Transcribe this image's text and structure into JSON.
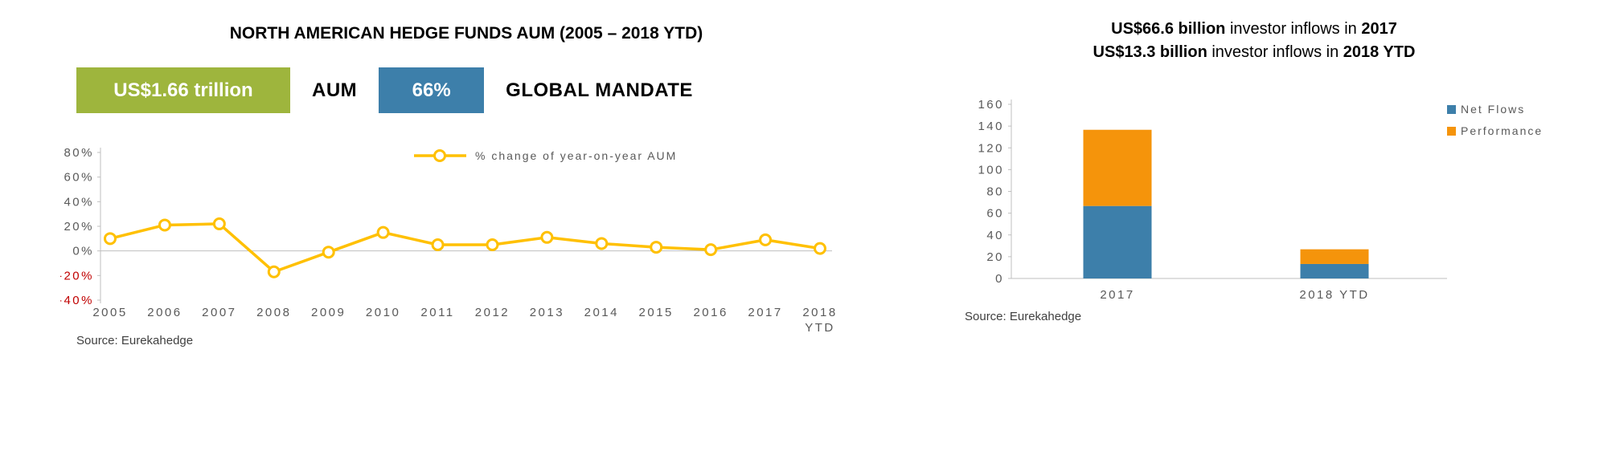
{
  "colors": {
    "green": "#9EB53D",
    "blue": "#3D7FAA",
    "orange": "#F5940B",
    "yellow": "#FFC000",
    "red": "#C00000",
    "axis_text": "#595959",
    "axis_line": "#BFBFBF",
    "text": "#000000"
  },
  "left": {
    "title": "NORTH AMERICAN HEDGE FUNDS AUM (2005 – 2018 YTD)",
    "kpis": [
      {
        "value": "US$1.66 trillion",
        "label": "AUM",
        "color": "#9EB53D"
      },
      {
        "value": "66%",
        "label": "GLOBAL MANDATE",
        "color": "#3D7FAA"
      }
    ],
    "source": "Source: Eurekahedge"
  },
  "right": {
    "headline": {
      "line1": {
        "b1": "US$66.6 billion",
        "mid": " investor inflows in ",
        "b2": "2017"
      },
      "line2": {
        "b1": "US$13.3 billion",
        "mid": " investor inflows in ",
        "b2": "2018 YTD"
      }
    },
    "source": "Source: Eurekahedge"
  },
  "chart_data": [
    {
      "type": "line",
      "title": "NORTH AMERICAN HEDGE FUNDS AUM (2005 – 2018 YTD)",
      "categories": [
        "2005",
        "2006",
        "2007",
        "2008",
        "2009",
        "2010",
        "2011",
        "2012",
        "2013",
        "2014",
        "2015",
        "2016",
        "2017",
        "2018 YTD"
      ],
      "series": [
        {
          "name": "% change of year-on-year AUM",
          "values": [
            10,
            21,
            22,
            -17,
            -1,
            15,
            5,
            5,
            11,
            6,
            3,
            1,
            9,
            2
          ]
        }
      ],
      "ylim": [
        -40,
        80
      ],
      "ytick_step": 20,
      "ytick_suffix": "%",
      "legend_position": "top-right",
      "grid": false,
      "line_color": "#FFC000",
      "negative_tick_color": "#C00000",
      "xlabel": "",
      "ylabel": ""
    },
    {
      "type": "bar",
      "stacked": true,
      "title": "Investor inflows (US$ billion)",
      "categories": [
        "2017",
        "2018 YTD"
      ],
      "series": [
        {
          "name": "Net Flows",
          "values": [
            66.6,
            13.3
          ],
          "color": "#3D7FAA"
        },
        {
          "name": "Performance",
          "values": [
            70.0,
            13.5
          ],
          "color": "#F5940B"
        }
      ],
      "ylim": [
        0,
        160
      ],
      "ytick_step": 20,
      "legend_position": "top-right",
      "grid": false,
      "xlabel": "",
      "ylabel": ""
    }
  ]
}
